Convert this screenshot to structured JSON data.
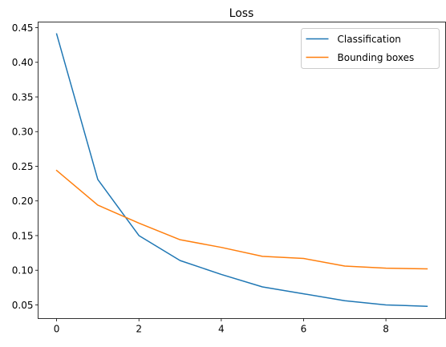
{
  "chart_data": {
    "type": "line",
    "title": "Loss",
    "xlabel": "",
    "ylabel": "",
    "x": [
      0,
      1,
      2,
      3,
      4,
      5,
      6,
      7,
      8,
      9
    ],
    "xlim": [
      -0.45,
      9.45
    ],
    "ylim": [
      0.0303,
      0.4581
    ],
    "xticks": [
      0,
      2,
      4,
      6,
      8
    ],
    "yticks": [
      0.05,
      0.1,
      0.15,
      0.2,
      0.25,
      0.3,
      0.35,
      0.4,
      0.45
    ],
    "grid": false,
    "legend_position": "top-right",
    "series": [
      {
        "name": "Classification",
        "color": "#1f77b4",
        "values": [
          0.441,
          0.231,
          0.15,
          0.114,
          0.094,
          0.076,
          0.066,
          0.056,
          0.05,
          0.048
        ]
      },
      {
        "name": "Bounding boxes",
        "color": "#ff7f0e",
        "values": [
          0.244,
          0.194,
          0.168,
          0.144,
          0.133,
          0.12,
          0.117,
          0.106,
          0.103,
          0.102
        ]
      }
    ]
  }
}
